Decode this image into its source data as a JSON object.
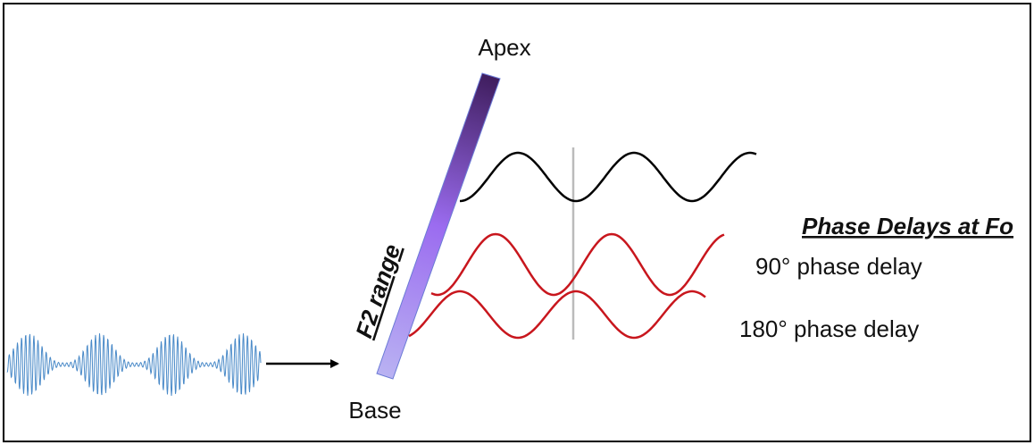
{
  "labels": {
    "apex": "Apex",
    "base": "Base",
    "f2_range": "F2 range"
  },
  "legend": {
    "title": "Phase Delays at Fo",
    "items": [
      "90° phase delay",
      "180° phase delay"
    ]
  }
}
